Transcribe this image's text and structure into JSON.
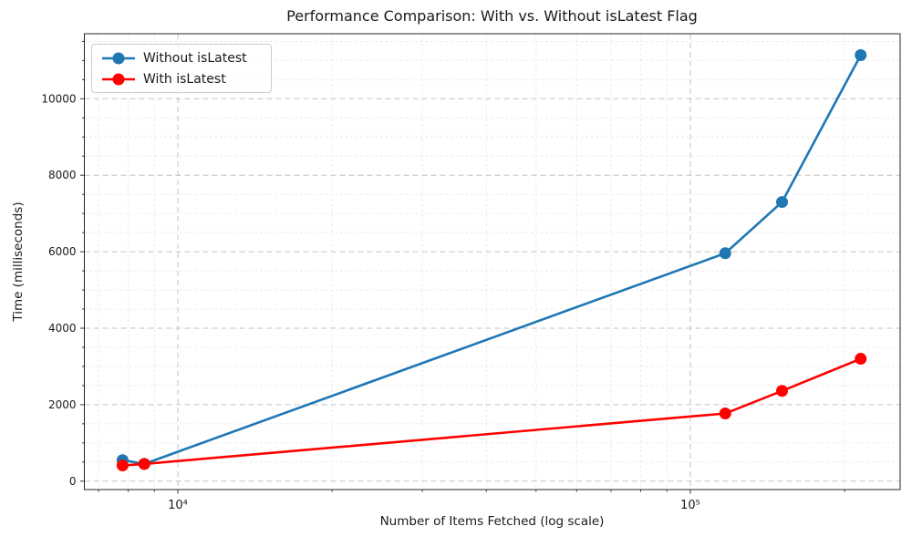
{
  "chart_data": {
    "type": "line",
    "title": "Performance Comparison: With vs. Without isLatest Flag",
    "xlabel": "Number of Items Fetched (log scale)",
    "ylabel": "Time (milliseconds)",
    "x_scale": "log",
    "xlim": [
      6570,
      256700
    ],
    "ylim": [
      -220,
      11700
    ],
    "x": [
      7800,
      8600,
      117000,
      151000,
      215000
    ],
    "series": [
      {
        "name": "Without isLatest",
        "color": "#1f77b4",
        "values": [
          550,
          450,
          5960,
          7300,
          11140
        ]
      },
      {
        "name": "With isLatest",
        "color": "#ff0000",
        "values": [
          410,
          450,
          1770,
          2360,
          3200
        ]
      }
    ],
    "yticks": [
      0,
      2000,
      4000,
      6000,
      8000,
      10000
    ],
    "xticks": [
      {
        "value": 10000,
        "label": "10⁴"
      },
      {
        "value": 100000,
        "label": "10⁵"
      }
    ],
    "grid": "major and minor, dashed",
    "legend_position": "upper left"
  }
}
